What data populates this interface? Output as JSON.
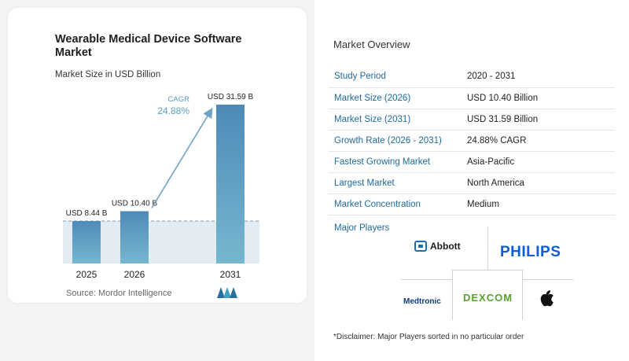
{
  "chart_data": {
    "type": "bar",
    "title": "Wearable Medical Device Software Market",
    "subtitle": "Market Size in USD Billion",
    "categories": [
      "2025",
      "2026",
      "2031"
    ],
    "values": [
      8.44,
      10.4,
      31.59
    ],
    "data_labels": [
      "USD 8.44 B",
      "USD 10.40 B",
      "USD 31.59 B"
    ],
    "cagr_label": "CAGR",
    "cagr_value": "24.88%",
    "ylim": [
      0,
      31.59
    ],
    "colors": {
      "bar_top": "#4f8ab8",
      "bar_bottom": "#76b7cf",
      "band": "#e4ecf3",
      "arrow": "#6fa3c6",
      "cagr_text": "#5b9bc4"
    }
  },
  "chart_panel": {
    "source": "Source:  Mordor Intelligence",
    "logo_icon": "mordor-intelligence-logo-icon"
  },
  "overview": {
    "title": "Market Overview",
    "rows": [
      {
        "key": "Study Period",
        "value": "2020 - 2031"
      },
      {
        "key": "Market Size (2026)",
        "value": "USD 10.40 Billion"
      },
      {
        "key": "Market Size (2031)",
        "value": "USD 31.59 Billion"
      },
      {
        "key": "Growth Rate (2026 - 2031)",
        "value": "24.88% CAGR"
      },
      {
        "key": "Fastest Growing Market",
        "value": "Asia-Pacific"
      },
      {
        "key": "Largest Market",
        "value": "North America"
      },
      {
        "key": "Market Concentration",
        "value": "Medium"
      }
    ],
    "players_title": "Major Players",
    "players": {
      "abbott": "Abbott",
      "philips": "PHILIPS",
      "medtronic": "Medtronic",
      "dexcom": "DEXCOM",
      "apple_icon": "apple-icon"
    },
    "disclaimer": "*Disclaimer: Major Players sorted in no particular order"
  }
}
